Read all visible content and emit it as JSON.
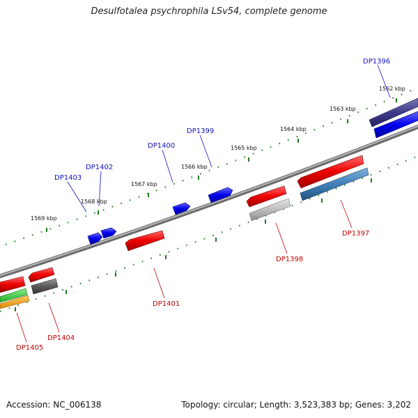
{
  "title": "Desulfotalea psychrophila LSv54, complete genome",
  "footer": {
    "accession": "Accession: NC_006138",
    "topology": "Topology: circular; Length: 3,523,383 bp; Genes: 3,202"
  },
  "colors": {
    "backbone": "#8a8a8a",
    "tick": "#1f7a1f",
    "forward_label": "#1010c0",
    "reverse_label": "#c00000"
  },
  "scale_labels": [
    "1562 kbp",
    "1563 kbp",
    "1564 kbp",
    "1565 kbp",
    "1566 kbp",
    "1567 kbp",
    "1568 kbp",
    "1569 kbp"
  ],
  "forward_gene_labels": [
    "DP1396",
    "DP1399",
    "DP1400",
    "DP1402",
    "DP1403"
  ],
  "reverse_gene_labels": [
    "DP1397",
    "DP1398",
    "DP1401",
    "DP1404",
    "DP1405"
  ]
}
